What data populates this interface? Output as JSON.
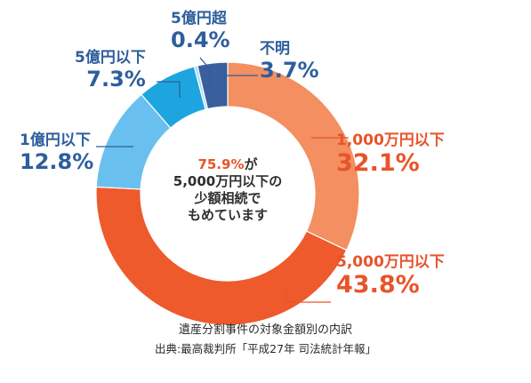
{
  "chart_data": {
    "type": "pie",
    "title": "遺産分割事件の対象金額別の内訳",
    "source": "出典:最高裁判所「平成27年 司法統計年報」",
    "center_text": {
      "highlight": "75.9%",
      "line1_suffix": "が",
      "line2": "5,000万円以下の",
      "line3": "少額相続で",
      "line4": "もめています"
    },
    "slices": [
      {
        "name": "1,000万円以下",
        "value": 32.1,
        "label": "32.1%",
        "color": "#f38f60"
      },
      {
        "name": "5,000万円以下",
        "value": 43.8,
        "label": "43.8%",
        "color": "#ee5a2b"
      },
      {
        "name": "1億円以下",
        "value": 12.8,
        "label": "12.8%",
        "color": "#69c0ee"
      },
      {
        "name": "5億円以下",
        "value": 7.3,
        "label": "7.3%",
        "color": "#1ea5e0"
      },
      {
        "name": "5億円超",
        "value": 0.4,
        "label": "0.4%",
        "color": "#a9dcf6"
      },
      {
        "name": "不明",
        "value": 3.7,
        "label": "3.7%",
        "color": "#3a5f9c"
      }
    ],
    "label_colors": {
      "orange": "#e8542a",
      "blue": "#2e5e9c"
    }
  }
}
